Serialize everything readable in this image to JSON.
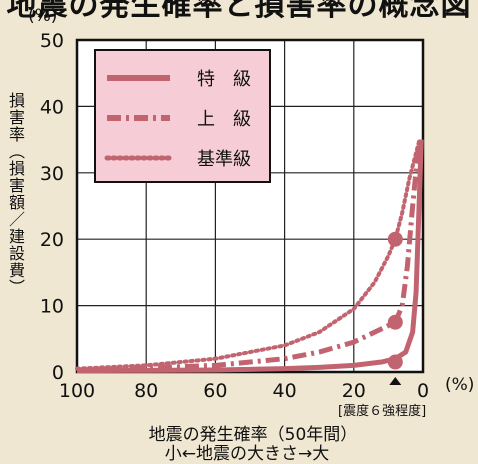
{
  "heading": "地震の発生確率と損害率の概念図",
  "y_unit": "(%)",
  "y_title": "損害率（損害額／建設費）",
  "x_unit": "(%)",
  "marker_note": "[震度６強程度]",
  "x_title_line1": "地震の発生確率（50年間）",
  "x_title_line2": "小←地震の大きさ→大",
  "colors": {
    "curve": "#c26470",
    "legend_bg": "#f6cdd6",
    "plot_bg": "#ffffff",
    "frame": "#111111",
    "background": "#f0e7d2"
  },
  "chart_data": {
    "type": "line",
    "x_reversed": true,
    "xlim": [
      100,
      0
    ],
    "ylim": [
      0,
      50
    ],
    "x_ticks": [
      100,
      80,
      60,
      40,
      20,
      0
    ],
    "y_ticks": [
      0,
      10,
      20,
      30,
      40,
      50
    ],
    "grid": true,
    "legend_position": "top-left",
    "series": [
      {
        "name": "特　級",
        "style": "solid",
        "points": [
          [
            100,
            0.2
          ],
          [
            80,
            0.25
          ],
          [
            60,
            0.3
          ],
          [
            40,
            0.5
          ],
          [
            30,
            0.7
          ],
          [
            20,
            1.0
          ],
          [
            12,
            1.5
          ],
          [
            8,
            2.0
          ],
          [
            5,
            3
          ],
          [
            3,
            6
          ],
          [
            2,
            12
          ],
          [
            1.2,
            24
          ],
          [
            0.5,
            35
          ]
        ],
        "marker": [
          8,
          1.5
        ]
      },
      {
        "name": "上　級",
        "style": "dashdot",
        "points": [
          [
            100,
            0.3
          ],
          [
            80,
            0.6
          ],
          [
            60,
            1.0
          ],
          [
            40,
            2.0
          ],
          [
            30,
            3.0
          ],
          [
            20,
            4.5
          ],
          [
            12,
            6.5
          ],
          [
            8,
            7.5
          ],
          [
            6,
            10
          ],
          [
            4.5,
            16
          ],
          [
            3,
            25
          ],
          [
            1.5,
            33
          ],
          [
            0.7,
            35
          ]
        ],
        "marker": [
          8,
          7.5
        ]
      },
      {
        "name": "基準級",
        "style": "dotted",
        "points": [
          [
            100,
            0.5
          ],
          [
            80,
            1.0
          ],
          [
            60,
            2.0
          ],
          [
            40,
            4.0
          ],
          [
            30,
            6.0
          ],
          [
            20,
            9.5
          ],
          [
            14,
            13.5
          ],
          [
            10,
            17.5
          ],
          [
            8,
            20
          ],
          [
            6,
            24
          ],
          [
            4,
            29
          ],
          [
            2,
            33
          ],
          [
            1,
            35
          ]
        ],
        "marker": [
          8,
          20
        ]
      }
    ],
    "event_marker_x": 8
  }
}
